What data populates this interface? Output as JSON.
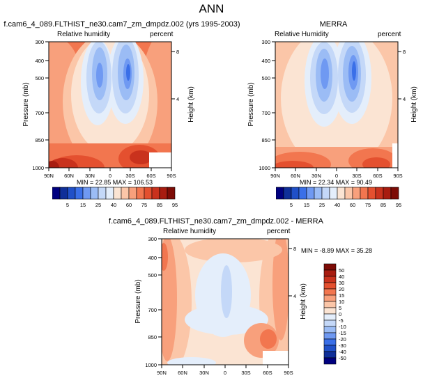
{
  "figure": {
    "title": "ANN"
  },
  "chart_data": [
    {
      "type": "heatmap",
      "title": "f.cam6_4_089.FLTHIST_ne30.cam7_zm_dmpdz.002 (yrs 1995-2003)",
      "left_label": "Relative humidity",
      "right_label": "percent",
      "ylabel": "Pressure (mb)",
      "ylabel_right": "Height (km)",
      "x_ticks": [
        "90N",
        "60N",
        "30N",
        "0",
        "30S",
        "60S",
        "90S"
      ],
      "y_ticks": [
        "300",
        "400",
        "500",
        "700",
        "850",
        "1000"
      ],
      "y_ticks_right": [
        "8",
        "4"
      ],
      "stats_text": "MIN = 22.85   MAX = 106.53",
      "colorbar": {
        "labels": [
          "5",
          "15",
          "25",
          "40",
          "60",
          "75",
          "85",
          "95"
        ],
        "colors": [
          "#00007f",
          "#0f2f99",
          "#2050c8",
          "#3a6fe8",
          "#6f99f2",
          "#9bbcf5",
          "#c4d8f8",
          "#e4eefb",
          "#fbe4d3",
          "#fbc6a8",
          "#f8a07c",
          "#f2764f",
          "#e4502f",
          "#c9321d",
          "#a81c10",
          "#7d0c06"
        ]
      }
    },
    {
      "type": "heatmap",
      "title": "MERRA",
      "left_label": "Relative Humidity",
      "right_label": "percent",
      "ylabel": "Pressure (mb)",
      "ylabel_right": "Height (km)",
      "x_ticks": [
        "90N",
        "60N",
        "30N",
        "0",
        "30S",
        "60S",
        "90S"
      ],
      "y_ticks": [
        "300",
        "400",
        "500",
        "700",
        "850",
        "1000"
      ],
      "y_ticks_right": [
        "8",
        "4"
      ],
      "stats_text": "MIN = 22.34   MAX = 90.49",
      "colorbar": {
        "labels": [
          "5",
          "15",
          "25",
          "40",
          "60",
          "75",
          "85",
          "95"
        ]
      }
    },
    {
      "type": "heatmap",
      "title": "f.cam6_4_089.FLTHIST_ne30.cam7_zm_dmpdz.002 - MERRA",
      "left_label": "Relative humidity",
      "right_label": "percent",
      "ylabel": "Pressure (mb)",
      "ylabel_right": "Height (km)",
      "x_ticks": [
        "90N",
        "60N",
        "30N",
        "0",
        "30S",
        "60S",
        "90S"
      ],
      "y_ticks": [
        "300",
        "400",
        "500",
        "700",
        "850",
        "1000"
      ],
      "y_ticks_right": [
        "8",
        "4"
      ],
      "stats_text": "MIN = -8.89   MAX = 35.28",
      "colorbar": {
        "labels": [
          "50",
          "40",
          "30",
          "20",
          "15",
          "10",
          "5",
          "0",
          "-5",
          "-10",
          "-15",
          "-20",
          "-30",
          "-40",
          "-50"
        ],
        "colors": [
          "#7d0c06",
          "#a81c10",
          "#c9321d",
          "#e4502f",
          "#f2764f",
          "#f8a07c",
          "#fbc6a8",
          "#fbe4d3",
          "#e4eefb",
          "#c4d8f8",
          "#9bbcf5",
          "#6f99f2",
          "#3a6fe8",
          "#2050c8",
          "#0f2f99",
          "#00007f"
        ]
      }
    }
  ]
}
